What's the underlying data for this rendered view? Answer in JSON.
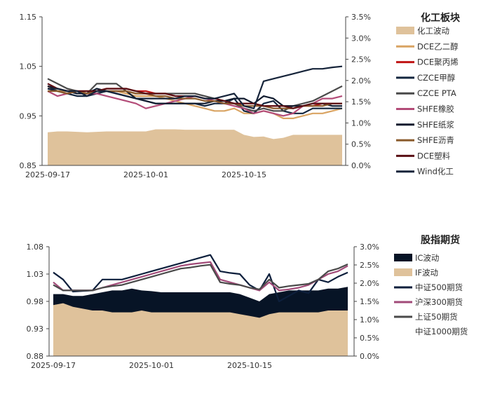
{
  "chart_data": [
    {
      "type": "line",
      "title": "化工板块",
      "x_ticks": [
        "2025-09-17",
        "2025-10-01",
        "2025-10-15"
      ],
      "x_tick_positions": [
        0,
        10,
        20
      ],
      "x_count": 31,
      "yleft_ticks": [
        "0.85",
        "0.95",
        "1.05",
        "1.15"
      ],
      "ylim_left": [
        0.85,
        1.15
      ],
      "yright_ticks": [
        "0.0%",
        "0.5%",
        "1.0%",
        "1.5%",
        "2.0%",
        "2.5%",
        "3.0%",
        "3.5%"
      ],
      "ylim_right": [
        0,
        3.5
      ],
      "area": {
        "name": "化工波动",
        "color": "#dfc29b",
        "axis": "right",
        "values": [
          0.78,
          0.8,
          0.8,
          0.79,
          0.78,
          0.79,
          0.8,
          0.8,
          0.8,
          0.8,
          0.8,
          0.85,
          0.85,
          0.85,
          0.84,
          0.84,
          0.84,
          0.84,
          0.84,
          0.84,
          0.72,
          0.67,
          0.68,
          0.62,
          0.65,
          0.72,
          0.72,
          0.72,
          0.72,
          0.72,
          0.72
        ]
      },
      "series": [
        {
          "name": "DCE乙二醇",
          "color": "#d9a463",
          "values": [
            1.01,
            1.0,
            1.0,
            1.0,
            1.0,
            1.0,
            1.0,
            1.0,
            0.995,
            0.99,
            0.99,
            0.99,
            0.985,
            0.98,
            0.975,
            0.97,
            0.965,
            0.96,
            0.96,
            0.965,
            0.955,
            0.955,
            0.96,
            0.955,
            0.945,
            0.945,
            0.95,
            0.955,
            0.955,
            0.96,
            0.965
          ]
        },
        {
          "name": "DCE聚丙烯",
          "color": "#c01414",
          "values": [
            1.01,
            1.005,
            1.0,
            1.0,
            1.0,
            1.0,
            1.005,
            1.005,
            1.005,
            1.0,
            1.0,
            0.995,
            0.995,
            0.99,
            0.99,
            0.99,
            0.985,
            0.985,
            0.98,
            0.975,
            0.975,
            0.975,
            0.97,
            0.97,
            0.97,
            0.97,
            0.97,
            0.97,
            0.975,
            0.975,
            0.975
          ]
        },
        {
          "name": "CZCE甲醇",
          "color": "#13263f",
          "values": [
            1.005,
            1.0,
            0.995,
            0.99,
            0.99,
            0.995,
            1.0,
            0.995,
            0.99,
            0.985,
            0.98,
            0.975,
            0.975,
            0.975,
            0.975,
            0.975,
            0.97,
            0.975,
            0.975,
            0.985,
            0.96,
            0.955,
            0.975,
            0.98,
            0.96,
            0.955,
            0.955,
            0.965,
            0.965,
            0.965,
            0.965
          ]
        },
        {
          "name": "CZCE PTA",
          "color": "#4a4a4a",
          "values": [
            1.025,
            1.015,
            1.005,
            1.0,
            0.995,
            1.015,
            1.015,
            1.015,
            1.0,
            0.995,
            0.995,
            0.995,
            0.995,
            0.995,
            0.995,
            0.995,
            0.99,
            0.985,
            0.98,
            0.975,
            0.965,
            0.96,
            0.965,
            0.96,
            0.96,
            0.97,
            0.975,
            0.98,
            0.99,
            1.0,
            1.01
          ]
        },
        {
          "name": "SHFE橡胶",
          "color": "#b34c78",
          "values": [
            1.0,
            0.99,
            0.995,
            1.0,
            0.995,
            0.995,
            0.99,
            0.985,
            0.98,
            0.975,
            0.965,
            0.97,
            0.975,
            0.98,
            0.985,
            0.99,
            0.985,
            0.98,
            0.975,
            0.97,
            0.965,
            0.955,
            0.96,
            0.955,
            0.95,
            0.955,
            0.97,
            0.975,
            0.985,
            0.985,
            0.99
          ]
        },
        {
          "name": "SHFE纸浆",
          "color": "#0f1a2e",
          "values": [
            1.01,
            1.005,
            1.0,
            0.995,
            0.995,
            1.005,
            1.0,
            1.0,
            1.0,
            0.985,
            0.98,
            0.975,
            0.975,
            0.975,
            0.975,
            0.975,
            0.975,
            0.98,
            0.98,
            0.985,
            0.985,
            0.975,
            0.99,
            0.985,
            0.97,
            0.97,
            0.97,
            0.975,
            0.975,
            0.97,
            0.97
          ]
        },
        {
          "name": "SHFE沥青",
          "color": "#8a5a2b",
          "values": [
            1.0,
            1.0,
            0.995,
            1.0,
            0.995,
            1.0,
            1.0,
            1.0,
            1.0,
            0.995,
            0.995,
            0.99,
            0.99,
            0.985,
            0.985,
            0.985,
            0.98,
            0.98,
            0.975,
            0.975,
            0.97,
            0.97,
            0.97,
            0.965,
            0.965,
            0.965,
            0.97,
            0.97,
            0.97,
            0.975,
            0.975
          ]
        },
        {
          "name": "DCE塑料",
          "color": "#5a0f14",
          "values": [
            1.015,
            1.005,
            1.0,
            1.0,
            1.0,
            1.0,
            1.005,
            1.005,
            1.005,
            1.0,
            0.995,
            0.995,
            0.995,
            0.99,
            0.99,
            0.99,
            0.985,
            0.985,
            0.98,
            0.975,
            0.975,
            0.975,
            0.97,
            0.97,
            0.97,
            0.965,
            0.97,
            0.975,
            0.975,
            0.975,
            0.975
          ]
        },
        {
          "name": "Wind化工",
          "color": "#16243a",
          "values": [
            1.005,
            1.005,
            1.0,
            1.0,
            0.99,
            1.0,
            1.0,
            0.995,
            0.99,
            0.985,
            0.985,
            0.985,
            0.985,
            0.985,
            0.99,
            0.99,
            0.985,
            0.985,
            0.99,
            0.995,
            0.97,
            0.965,
            1.02,
            1.025,
            1.03,
            1.035,
            1.04,
            1.045,
            1.045,
            1.048,
            1.05
          ]
        }
      ]
    },
    {
      "type": "line",
      "title": "股指期货",
      "x_ticks": [
        "2025-09-17",
        "2025-10-01",
        "2025-10-15"
      ],
      "x_tick_positions": [
        0,
        10,
        20
      ],
      "x_count": 31,
      "yleft_ticks": [
        "0.88",
        "0.93",
        "0.98",
        "1.03",
        "1.08"
      ],
      "ylim_left": [
        0.88,
        1.08
      ],
      "yright_ticks": [
        "0.0%",
        "0.5%",
        "1.0%",
        "1.5%",
        "2.0%",
        "2.5%",
        "3.0%"
      ],
      "ylim_right": [
        0,
        3.0
      ],
      "areas": [
        {
          "name": "IC波动",
          "color": "#071426",
          "axis": "right",
          "values": [
            1.7,
            1.7,
            1.65,
            1.65,
            1.7,
            1.75,
            1.8,
            1.8,
            1.85,
            1.8,
            1.78,
            1.75,
            1.75,
            1.75,
            1.75,
            1.75,
            1.75,
            1.75,
            1.75,
            1.7,
            1.6,
            1.5,
            1.7,
            1.75,
            1.8,
            1.8,
            1.8,
            1.8,
            1.85,
            1.85,
            1.9
          ]
        },
        {
          "name": "IF波动",
          "color": "#dfc29b",
          "axis": "right",
          "values": [
            1.4,
            1.45,
            1.35,
            1.3,
            1.25,
            1.25,
            1.2,
            1.2,
            1.2,
            1.25,
            1.2,
            1.2,
            1.2,
            1.2,
            1.2,
            1.2,
            1.2,
            1.2,
            1.2,
            1.15,
            1.1,
            1.05,
            1.15,
            1.2,
            1.2,
            1.2,
            1.2,
            1.2,
            1.25,
            1.25,
            1.25
          ]
        }
      ],
      "series": [
        {
          "name": "中证500期货",
          "color": "#0d1f3c",
          "values": [
            1.033,
            1.02,
            0.998,
            0.999,
            1.0,
            1.02,
            1.02,
            1.02,
            1.025,
            1.03,
            1.035,
            1.04,
            1.045,
            1.05,
            1.055,
            1.06,
            1.065,
            1.035,
            1.032,
            1.03,
            1.01,
            1.0,
            1.03,
            0.98,
            0.99,
            1.0,
            0.995,
            1.02,
            1.015,
            1.025,
            1.033
          ]
        },
        {
          "name": "沪深300期货",
          "color": "#a14a78",
          "values": [
            1.015,
            1.0,
            1.0,
            1.0,
            1.0,
            1.005,
            1.01,
            1.015,
            1.02,
            1.025,
            1.03,
            1.035,
            1.04,
            1.045,
            1.048,
            1.05,
            1.052,
            1.02,
            1.015,
            1.01,
            1.005,
            1.0,
            1.015,
            1.0,
            1.002,
            1.005,
            1.01,
            1.02,
            1.03,
            1.035,
            1.045
          ]
        },
        {
          "name": "上证50期货",
          "color": "#4a4a4a",
          "values": [
            1.01,
            1.0,
            1.0,
            1.0,
            1.0,
            1.005,
            1.008,
            1.01,
            1.015,
            1.02,
            1.025,
            1.03,
            1.035,
            1.04,
            1.042,
            1.045,
            1.047,
            1.015,
            1.012,
            1.01,
            1.005,
            1.002,
            1.02,
            1.005,
            1.008,
            1.01,
            1.012,
            1.02,
            1.035,
            1.04,
            1.048
          ]
        },
        {
          "name": "中证1000期货",
          "color": "#1a1a1a",
          "values": []
        }
      ]
    }
  ]
}
